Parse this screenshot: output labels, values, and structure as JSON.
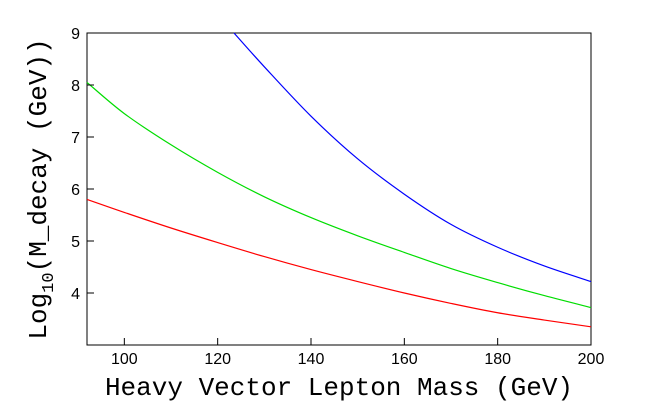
{
  "chart_data": {
    "type": "line",
    "title": "",
    "xlabel": "Heavy Vector Lepton Mass (GeV)",
    "ylabel_main": "Log",
    "ylabel_sub": "10",
    "ylabel_rest": "(M_decay (GeV))",
    "xlim": [
      92,
      200
    ],
    "ylim": [
      3,
      9
    ],
    "xticks": [
      100,
      120,
      140,
      160,
      180,
      200
    ],
    "yticks": [
      4,
      5,
      6,
      7,
      8,
      9
    ],
    "grid": false,
    "series": [
      {
        "color": "#0000ff",
        "x": [
          123.5,
          130,
          140,
          150,
          160,
          170,
          180,
          190,
          200
        ],
        "y": [
          9.0,
          8.35,
          7.4,
          6.58,
          5.9,
          5.32,
          4.88,
          4.52,
          4.22
        ]
      },
      {
        "color": "#00dd00",
        "x": [
          92,
          100,
          110,
          120,
          130,
          140,
          150,
          160,
          170,
          180,
          190,
          200
        ],
        "y": [
          8.05,
          7.45,
          6.85,
          6.32,
          5.85,
          5.45,
          5.1,
          4.78,
          4.47,
          4.2,
          3.95,
          3.72
        ]
      },
      {
        "color": "#ff0000",
        "x": [
          92,
          100,
          110,
          120,
          130,
          140,
          150,
          160,
          170,
          180,
          190,
          200
        ],
        "y": [
          5.8,
          5.55,
          5.25,
          4.97,
          4.7,
          4.45,
          4.22,
          4.0,
          3.8,
          3.62,
          3.48,
          3.35
        ]
      }
    ]
  }
}
